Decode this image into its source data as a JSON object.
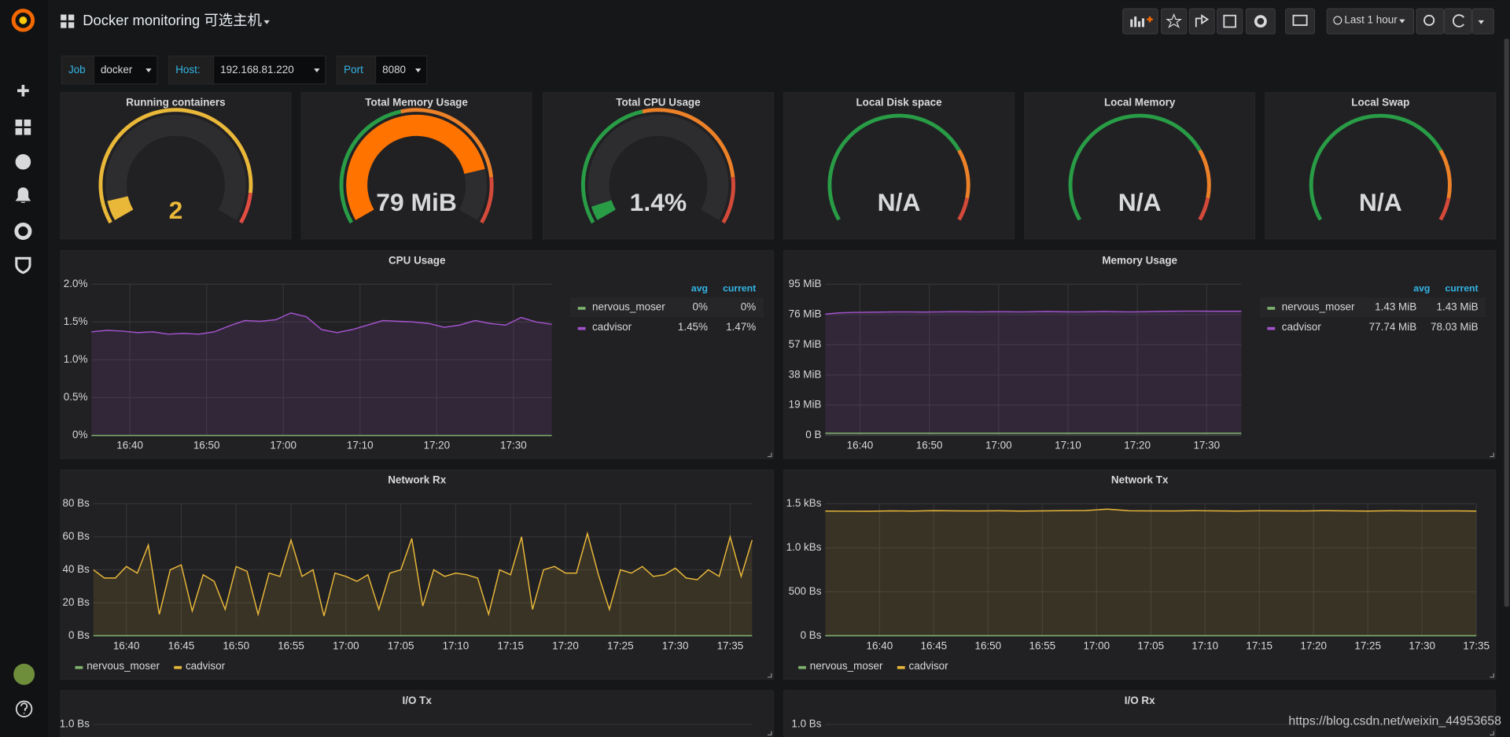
{
  "header": {
    "title": "Docker monitoring 可选主机",
    "time_range": "Last 1 hour"
  },
  "variables": [
    {
      "label": "Job",
      "value": "docker"
    },
    {
      "label": "Host:",
      "value": "192.168.81.220"
    },
    {
      "label": "Port",
      "value": "8080"
    }
  ],
  "stats": [
    {
      "title": "Running containers",
      "value": "2"
    },
    {
      "title": "Total Memory Usage",
      "value": "79 MiB"
    },
    {
      "title": "Total CPU Usage",
      "value": "1.4%"
    },
    {
      "title": "Local Disk space",
      "value": "N/A"
    },
    {
      "title": "Local Memory",
      "value": "N/A"
    },
    {
      "title": "Local Swap",
      "value": "N/A"
    }
  ],
  "chart_data": [
    {
      "type": "line",
      "title": "CPU Usage",
      "x": [
        "16:35",
        "16:37",
        "16:39",
        "16:41",
        "16:43",
        "16:45",
        "16:47",
        "16:49",
        "16:51",
        "16:53",
        "16:55",
        "16:57",
        "16:59",
        "17:01",
        "17:03",
        "17:05",
        "17:07",
        "17:09",
        "17:11",
        "17:13",
        "17:15",
        "17:17",
        "17:19",
        "17:21",
        "17:23",
        "17:25",
        "17:27",
        "17:29",
        "17:31",
        "17:33",
        "17:35"
      ],
      "xlim": [
        "16:35",
        "17:35"
      ],
      "xticks": [
        "16:40",
        "16:50",
        "17:00",
        "17:10",
        "17:20",
        "17:30"
      ],
      "ylim": [
        0,
        2
      ],
      "yticks": [
        {
          "value": 0,
          "label": "0%"
        },
        {
          "value": 0.5,
          "label": "0.5%"
        },
        {
          "value": 1,
          "label": "1.0%"
        },
        {
          "value": 1.5,
          "label": "1.5%"
        },
        {
          "value": 2,
          "label": "2.0%"
        }
      ],
      "grid": true,
      "legend": "right",
      "legend_columns": [
        "avg",
        "current"
      ],
      "series": [
        {
          "name": "nervous_moser",
          "color": "#7eb26d",
          "legend_values": [
            "0%",
            "0%"
          ],
          "values": [
            0,
            0,
            0,
            0,
            0,
            0,
            0,
            0,
            0,
            0,
            0,
            0,
            0,
            0,
            0,
            0,
            0,
            0,
            0,
            0,
            0,
            0,
            0,
            0,
            0,
            0,
            0,
            0,
            0,
            0,
            0
          ]
        },
        {
          "name": "cadvisor",
          "color": "#a352cc",
          "legend_values": [
            "1.45%",
            "1.47%"
          ],
          "values": [
            1.37,
            1.39,
            1.38,
            1.36,
            1.37,
            1.34,
            1.35,
            1.34,
            1.37,
            1.45,
            1.52,
            1.51,
            1.53,
            1.62,
            1.57,
            1.4,
            1.36,
            1.4,
            1.46,
            1.52,
            1.51,
            1.5,
            1.48,
            1.43,
            1.46,
            1.52,
            1.48,
            1.46,
            1.56,
            1.5,
            1.47
          ]
        }
      ]
    },
    {
      "type": "line",
      "title": "Memory Usage",
      "x": [
        "16:35",
        "16:37",
        "16:39",
        "16:41",
        "16:43",
        "16:45",
        "16:47",
        "16:49",
        "16:51",
        "16:53",
        "16:55",
        "16:57",
        "16:59",
        "17:01",
        "17:03",
        "17:05",
        "17:07",
        "17:09",
        "17:11",
        "17:13",
        "17:15",
        "17:17",
        "17:19",
        "17:21",
        "17:23",
        "17:25",
        "17:27",
        "17:29",
        "17:31",
        "17:33",
        "17:35"
      ],
      "xlim": [
        "16:35",
        "17:35"
      ],
      "xticks": [
        "16:40",
        "16:50",
        "17:00",
        "17:10",
        "17:20",
        "17:30"
      ],
      "ylim": [
        0,
        95
      ],
      "yticks": [
        {
          "value": 0,
          "label": "0 B"
        },
        {
          "value": 19,
          "label": "19 MiB"
        },
        {
          "value": 38,
          "label": "38 MiB"
        },
        {
          "value": 57,
          "label": "57 MiB"
        },
        {
          "value": 76,
          "label": "76 MiB"
        },
        {
          "value": 95,
          "label": "95 MiB"
        }
      ],
      "grid": true,
      "legend": "right",
      "legend_columns": [
        "avg",
        "current"
      ],
      "series": [
        {
          "name": "nervous_moser",
          "color": "#7eb26d",
          "legend_values": [
            "1.43 MiB",
            "1.43 MiB"
          ],
          "values": [
            1.43,
            1.43,
            1.43,
            1.43,
            1.43,
            1.43,
            1.43,
            1.43,
            1.43,
            1.43,
            1.43,
            1.43,
            1.43,
            1.43,
            1.43,
            1.43,
            1.43,
            1.43,
            1.43,
            1.43,
            1.43,
            1.43,
            1.43,
            1.43,
            1.43,
            1.43,
            1.43,
            1.43,
            1.43,
            1.43,
            1.43
          ]
        },
        {
          "name": "cadvisor",
          "color": "#a352cc",
          "legend_values": [
            "77.74 MiB",
            "78.03 MiB"
          ],
          "values": [
            76.2,
            77.0,
            77.3,
            77.4,
            77.5,
            77.6,
            77.6,
            77.5,
            77.6,
            77.7,
            77.7,
            77.6,
            77.7,
            77.7,
            77.6,
            77.7,
            77.8,
            77.7,
            77.6,
            77.7,
            77.8,
            77.7,
            77.6,
            77.7,
            77.9,
            78.0,
            78.1,
            78.1,
            78.0,
            78.0,
            78.0
          ]
        }
      ]
    },
    {
      "type": "line",
      "title": "Network Rx",
      "x": [
        "16:37",
        "16:38",
        "16:39",
        "16:40",
        "16:41",
        "16:42",
        "16:43",
        "16:44",
        "16:45",
        "16:46",
        "16:47",
        "16:48",
        "16:49",
        "16:50",
        "16:51",
        "16:52",
        "16:53",
        "16:54",
        "16:55",
        "16:56",
        "16:57",
        "16:58",
        "16:59",
        "17:00",
        "17:01",
        "17:02",
        "17:03",
        "17:04",
        "17:05",
        "17:06",
        "17:07",
        "17:08",
        "17:09",
        "17:10",
        "17:11",
        "17:12",
        "17:13",
        "17:14",
        "17:15",
        "17:16",
        "17:17",
        "17:18",
        "17:19",
        "17:20",
        "17:21",
        "17:22",
        "17:23",
        "17:24",
        "17:25",
        "17:26",
        "17:27",
        "17:28",
        "17:29",
        "17:30",
        "17:31",
        "17:32",
        "17:33",
        "17:34",
        "17:35",
        "17:36",
        "17:37"
      ],
      "xlim": [
        "16:37",
        "17:37"
      ],
      "xticks": [
        "16:40",
        "16:45",
        "16:50",
        "16:55",
        "17:00",
        "17:05",
        "17:10",
        "17:15",
        "17:20",
        "17:25",
        "17:30",
        "17:35"
      ],
      "ylim": [
        0,
        80
      ],
      "yticks": [
        {
          "value": 0,
          "label": "0 Bs"
        },
        {
          "value": 20,
          "label": "20 Bs"
        },
        {
          "value": 40,
          "label": "40 Bs"
        },
        {
          "value": 60,
          "label": "60 Bs"
        },
        {
          "value": 80,
          "label": "80 Bs"
        }
      ],
      "grid": true,
      "legend": "bottom",
      "series": [
        {
          "name": "nervous_moser",
          "color": "#7eb26d",
          "values": [
            0,
            0,
            0,
            0,
            0,
            0,
            0,
            0,
            0,
            0,
            0,
            0,
            0,
            0,
            0,
            0,
            0,
            0,
            0,
            0,
            0,
            0,
            0,
            0,
            0,
            0,
            0,
            0,
            0,
            0,
            0,
            0,
            0,
            0,
            0,
            0,
            0,
            0,
            0,
            0,
            0,
            0,
            0,
            0,
            0,
            0,
            0,
            0,
            0,
            0,
            0,
            0,
            0,
            0,
            0,
            0,
            0,
            0,
            0,
            0,
            0
          ]
        },
        {
          "name": "cadvisor",
          "color": "#eab839",
          "values": [
            40,
            35,
            35,
            42,
            38,
            55,
            13,
            40,
            43,
            15,
            37,
            33,
            16,
            42,
            39,
            13,
            38,
            36,
            58,
            36,
            40,
            12,
            38,
            36,
            33,
            37,
            16,
            38,
            40,
            59,
            18,
            40,
            36,
            38,
            37,
            35,
            13,
            40,
            37,
            60,
            16,
            40,
            42,
            38,
            38,
            62,
            37,
            16,
            40,
            38,
            42,
            36,
            37,
            41,
            35,
            34,
            40,
            36,
            60,
            36,
            58
          ]
        }
      ]
    },
    {
      "type": "line",
      "title": "Network Tx",
      "x": [
        "16:35",
        "16:37",
        "16:39",
        "16:41",
        "16:43",
        "16:45",
        "16:47",
        "16:49",
        "16:51",
        "16:53",
        "16:55",
        "16:57",
        "16:59",
        "17:01",
        "17:03",
        "17:05",
        "17:07",
        "17:09",
        "17:11",
        "17:13",
        "17:15",
        "17:17",
        "17:19",
        "17:21",
        "17:23",
        "17:25",
        "17:27",
        "17:29",
        "17:31",
        "17:33",
        "17:35"
      ],
      "xlim": [
        "16:35",
        "17:35"
      ],
      "xticks": [
        "16:40",
        "16:45",
        "16:50",
        "16:55",
        "17:00",
        "17:05",
        "17:10",
        "17:15",
        "17:20",
        "17:25",
        "17:30",
        "17:35"
      ],
      "ylim": [
        0,
        1500
      ],
      "yticks": [
        {
          "value": 0,
          "label": "0 Bs"
        },
        {
          "value": 500,
          "label": "500 Bs"
        },
        {
          "value": 1000,
          "label": "1.0 kBs"
        },
        {
          "value": 1500,
          "label": "1.5 kBs"
        }
      ],
      "grid": true,
      "legend": "bottom",
      "series": [
        {
          "name": "nervous_moser",
          "color": "#7eb26d",
          "values": [
            0,
            0,
            0,
            0,
            0,
            0,
            0,
            0,
            0,
            0,
            0,
            0,
            0,
            0,
            0,
            0,
            0,
            0,
            0,
            0,
            0,
            0,
            0,
            0,
            0,
            0,
            0,
            0,
            0,
            0,
            0
          ]
        },
        {
          "name": "cadvisor",
          "color": "#eab839",
          "values": [
            1418,
            1416,
            1415,
            1420,
            1418,
            1422,
            1420,
            1419,
            1421,
            1418,
            1420,
            1422,
            1423,
            1440,
            1421,
            1420,
            1419,
            1422,
            1420,
            1418,
            1421,
            1420,
            1419,
            1422,
            1420,
            1418,
            1421,
            1420,
            1419,
            1420,
            1418
          ]
        }
      ]
    },
    {
      "type": "line",
      "title": "I/O Tx",
      "yticks": [
        {
          "value": 1,
          "label": "1.0 Bs"
        }
      ],
      "grid": true
    },
    {
      "type": "line",
      "title": "I/O Rx",
      "yticks": [
        {
          "value": 1,
          "label": "1.0 Bs"
        }
      ],
      "grid": true
    }
  ],
  "watermark": "https://blog.csdn.net/weixin_44953658"
}
